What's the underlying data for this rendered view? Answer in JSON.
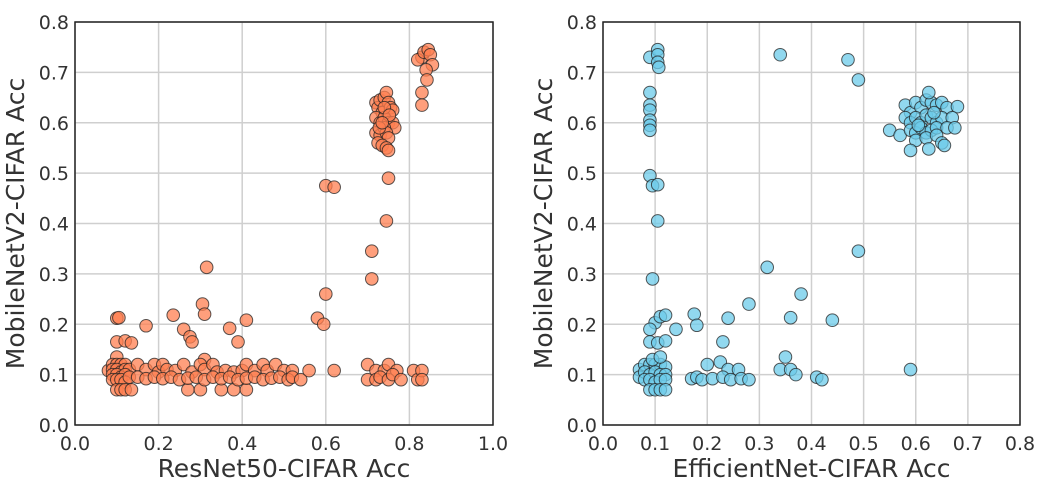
{
  "chart_data": [
    {
      "type": "scatter",
      "title": "",
      "xlabel": "ResNet50-CIFAR Acc",
      "ylabel": "MobileNetV2-CIFAR Acc",
      "xlim": [
        0.0,
        1.0
      ],
      "ylim": [
        0.0,
        0.8
      ],
      "xticks": [
        "0.0",
        "0.2",
        "0.4",
        "0.6",
        "0.8",
        "1.0"
      ],
      "xtick_values": [
        0,
        0.2,
        0.4,
        0.6,
        0.8,
        1.0
      ],
      "yticks": [
        "0.0",
        "0.1",
        "0.2",
        "0.3",
        "0.4",
        "0.5",
        "0.6",
        "0.7",
        "0.8"
      ],
      "ytick_values": [
        0,
        0.1,
        0.2,
        0.3,
        0.4,
        0.5,
        0.6,
        0.7,
        0.8
      ],
      "grid": true,
      "color": "#ff7f50",
      "points": [
        [
          0.83,
          0.73
        ],
        [
          0.82,
          0.725
        ],
        [
          0.835,
          0.74
        ],
        [
          0.845,
          0.745
        ],
        [
          0.85,
          0.735
        ],
        [
          0.855,
          0.715
        ],
        [
          0.84,
          0.705
        ],
        [
          0.842,
          0.685
        ],
        [
          0.83,
          0.66
        ],
        [
          0.83,
          0.635
        ],
        [
          0.72,
          0.64
        ],
        [
          0.725,
          0.63
        ],
        [
          0.73,
          0.645
        ],
        [
          0.735,
          0.62
        ],
        [
          0.74,
          0.65
        ],
        [
          0.745,
          0.66
        ],
        [
          0.75,
          0.64
        ],
        [
          0.755,
          0.63
        ],
        [
          0.76,
          0.625
        ],
        [
          0.72,
          0.61
        ],
        [
          0.73,
          0.6
        ],
        [
          0.74,
          0.61
        ],
        [
          0.75,
          0.6
        ],
        [
          0.76,
          0.6
        ],
        [
          0.765,
          0.59
        ],
        [
          0.72,
          0.58
        ],
        [
          0.73,
          0.575
        ],
        [
          0.74,
          0.59
        ],
        [
          0.745,
          0.58
        ],
        [
          0.75,
          0.57
        ],
        [
          0.725,
          0.56
        ],
        [
          0.735,
          0.555
        ],
        [
          0.745,
          0.55
        ],
        [
          0.75,
          0.545
        ],
        [
          0.74,
          0.63
        ],
        [
          0.728,
          0.59
        ],
        [
          0.752,
          0.615
        ],
        [
          0.735,
          0.6
        ],
        [
          0.75,
          0.49
        ],
        [
          0.745,
          0.405
        ],
        [
          0.71,
          0.345
        ],
        [
          0.71,
          0.29
        ],
        [
          0.6,
          0.475
        ],
        [
          0.62,
          0.472
        ],
        [
          0.6,
          0.26
        ],
        [
          0.58,
          0.212
        ],
        [
          0.595,
          0.2
        ],
        [
          0.1,
          0.212
        ],
        [
          0.105,
          0.213
        ],
        [
          0.1,
          0.165
        ],
        [
          0.12,
          0.167
        ],
        [
          0.135,
          0.163
        ],
        [
          0.17,
          0.197
        ],
        [
          0.235,
          0.218
        ],
        [
          0.26,
          0.19
        ],
        [
          0.275,
          0.175
        ],
        [
          0.28,
          0.165
        ],
        [
          0.305,
          0.24
        ],
        [
          0.31,
          0.22
        ],
        [
          0.315,
          0.313
        ],
        [
          0.31,
          0.13
        ],
        [
          0.37,
          0.192
        ],
        [
          0.41,
          0.208
        ],
        [
          0.39,
          0.165
        ],
        [
          0.1,
          0.135
        ],
        [
          0.08,
          0.108
        ],
        [
          0.09,
          0.12
        ],
        [
          0.1,
          0.12
        ],
        [
          0.11,
          0.12
        ],
        [
          0.12,
          0.12
        ],
        [
          0.09,
          0.11
        ],
        [
          0.1,
          0.11
        ],
        [
          0.11,
          0.105
        ],
        [
          0.12,
          0.11
        ],
        [
          0.13,
          0.11
        ],
        [
          0.09,
          0.1
        ],
        [
          0.1,
          0.1
        ],
        [
          0.11,
          0.095
        ],
        [
          0.12,
          0.1
        ],
        [
          0.09,
          0.09
        ],
        [
          0.1,
          0.09
        ],
        [
          0.11,
          0.09
        ],
        [
          0.12,
          0.085
        ],
        [
          0.13,
          0.095
        ],
        [
          0.1,
          0.07
        ],
        [
          0.11,
          0.07
        ],
        [
          0.12,
          0.07
        ],
        [
          0.135,
          0.07
        ],
        [
          0.27,
          0.07
        ],
        [
          0.3,
          0.07
        ],
        [
          0.35,
          0.07
        ],
        [
          0.38,
          0.07
        ],
        [
          0.41,
          0.07
        ],
        [
          0.15,
          0.12
        ],
        [
          0.17,
          0.11
        ],
        [
          0.19,
          0.12
        ],
        [
          0.2,
          0.105
        ],
        [
          0.21,
          0.12
        ],
        [
          0.22,
          0.11
        ],
        [
          0.24,
          0.108
        ],
        [
          0.26,
          0.12
        ],
        [
          0.28,
          0.105
        ],
        [
          0.3,
          0.12
        ],
        [
          0.31,
          0.11
        ],
        [
          0.33,
          0.12
        ],
        [
          0.34,
          0.105
        ],
        [
          0.36,
          0.108
        ],
        [
          0.38,
          0.105
        ],
        [
          0.4,
          0.108
        ],
        [
          0.41,
          0.12
        ],
        [
          0.43,
          0.108
        ],
        [
          0.45,
          0.12
        ],
        [
          0.46,
          0.108
        ],
        [
          0.48,
          0.12
        ],
        [
          0.5,
          0.108
        ],
        [
          0.52,
          0.108
        ],
        [
          0.15,
          0.095
        ],
        [
          0.17,
          0.092
        ],
        [
          0.19,
          0.095
        ],
        [
          0.21,
          0.092
        ],
        [
          0.23,
          0.095
        ],
        [
          0.25,
          0.09
        ],
        [
          0.27,
          0.093
        ],
        [
          0.29,
          0.095
        ],
        [
          0.31,
          0.09
        ],
        [
          0.33,
          0.095
        ],
        [
          0.35,
          0.092
        ],
        [
          0.37,
          0.095
        ],
        [
          0.39,
          0.09
        ],
        [
          0.41,
          0.093
        ],
        [
          0.43,
          0.095
        ],
        [
          0.45,
          0.09
        ],
        [
          0.47,
          0.093
        ],
        [
          0.49,
          0.095
        ],
        [
          0.51,
          0.09
        ],
        [
          0.52,
          0.095
        ],
        [
          0.54,
          0.09
        ],
        [
          0.56,
          0.108
        ],
        [
          0.62,
          0.108
        ],
        [
          0.7,
          0.12
        ],
        [
          0.72,
          0.108
        ],
        [
          0.74,
          0.108
        ],
        [
          0.75,
          0.12
        ],
        [
          0.77,
          0.108
        ],
        [
          0.7,
          0.09
        ],
        [
          0.72,
          0.09
        ],
        [
          0.73,
          0.095
        ],
        [
          0.75,
          0.09
        ],
        [
          0.76,
          0.1
        ],
        [
          0.78,
          0.09
        ],
        [
          0.81,
          0.108
        ],
        [
          0.82,
          0.09
        ],
        [
          0.83,
          0.108
        ],
        [
          0.83,
          0.09
        ]
      ]
    },
    {
      "type": "scatter",
      "title": "",
      "xlabel": "EfficientNet-CIFAR Acc",
      "ylabel": "MobileNetV2-CIFAR Acc",
      "xlim": [
        0.0,
        0.8
      ],
      "ylim": [
        0.0,
        0.8
      ],
      "xticks": [
        "0.0",
        "0.1",
        "0.2",
        "0.3",
        "0.4",
        "0.5",
        "0.6",
        "0.7",
        "0.8"
      ],
      "xtick_values": [
        0,
        0.1,
        0.2,
        0.3,
        0.4,
        0.5,
        0.6,
        0.7,
        0.8
      ],
      "yticks": [
        "0.0",
        "0.1",
        "0.2",
        "0.3",
        "0.4",
        "0.5",
        "0.6",
        "0.7",
        "0.8"
      ],
      "ytick_values": [
        0,
        0.1,
        0.2,
        0.3,
        0.4,
        0.5,
        0.6,
        0.7,
        0.8
      ],
      "grid": true,
      "color": "#6ccbea",
      "points": [
        [
          0.09,
          0.73
        ],
        [
          0.105,
          0.745
        ],
        [
          0.105,
          0.735
        ],
        [
          0.105,
          0.72
        ],
        [
          0.107,
          0.71
        ],
        [
          0.34,
          0.735
        ],
        [
          0.47,
          0.725
        ],
        [
          0.49,
          0.685
        ],
        [
          0.09,
          0.66
        ],
        [
          0.09,
          0.635
        ],
        [
          0.09,
          0.625
        ],
        [
          0.09,
          0.605
        ],
        [
          0.09,
          0.595
        ],
        [
          0.09,
          0.585
        ],
        [
          0.09,
          0.495
        ],
        [
          0.095,
          0.475
        ],
        [
          0.105,
          0.477
        ],
        [
          0.105,
          0.405
        ],
        [
          0.095,
          0.29
        ],
        [
          0.49,
          0.345
        ],
        [
          0.315,
          0.313
        ],
        [
          0.28,
          0.24
        ],
        [
          0.38,
          0.26
        ],
        [
          0.36,
          0.213
        ],
        [
          0.44,
          0.208
        ],
        [
          0.24,
          0.212
        ],
        [
          0.175,
          0.22
        ],
        [
          0.18,
          0.198
        ],
        [
          0.1,
          0.203
        ],
        [
          0.11,
          0.215
        ],
        [
          0.12,
          0.218
        ],
        [
          0.09,
          0.19
        ],
        [
          0.14,
          0.19
        ],
        [
          0.09,
          0.165
        ],
        [
          0.105,
          0.163
        ],
        [
          0.12,
          0.167
        ],
        [
          0.23,
          0.165
        ],
        [
          0.35,
          0.135
        ],
        [
          0.2,
          0.12
        ],
        [
          0.225,
          0.125
        ],
        [
          0.24,
          0.11
        ],
        [
          0.34,
          0.11
        ],
        [
          0.36,
          0.11
        ],
        [
          0.37,
          0.1
        ],
        [
          0.41,
          0.095
        ],
        [
          0.42,
          0.09
        ],
        [
          0.59,
          0.11
        ],
        [
          0.17,
          0.092
        ],
        [
          0.18,
          0.095
        ],
        [
          0.19,
          0.09
        ],
        [
          0.21,
          0.092
        ],
        [
          0.23,
          0.095
        ],
        [
          0.245,
          0.09
        ],
        [
          0.26,
          0.11
        ],
        [
          0.265,
          0.092
        ],
        [
          0.28,
          0.09
        ],
        [
          0.07,
          0.11
        ],
        [
          0.07,
          0.095
        ],
        [
          0.08,
          0.12
        ],
        [
          0.09,
          0.12
        ],
        [
          0.1,
          0.12
        ],
        [
          0.11,
          0.12
        ],
        [
          0.12,
          0.115
        ],
        [
          0.08,
          0.105
        ],
        [
          0.09,
          0.1
        ],
        [
          0.1,
          0.105
        ],
        [
          0.11,
          0.1
        ],
        [
          0.12,
          0.1
        ],
        [
          0.08,
          0.09
        ],
        [
          0.09,
          0.09
        ],
        [
          0.1,
          0.085
        ],
        [
          0.11,
          0.09
        ],
        [
          0.12,
          0.09
        ],
        [
          0.09,
          0.07
        ],
        [
          0.1,
          0.07
        ],
        [
          0.11,
          0.07
        ],
        [
          0.12,
          0.07
        ],
        [
          0.095,
          0.13
        ],
        [
          0.11,
          0.135
        ],
        [
          0.55,
          0.585
        ],
        [
          0.57,
          0.575
        ],
        [
          0.58,
          0.635
        ],
        [
          0.59,
          0.62
        ],
        [
          0.6,
          0.64
        ],
        [
          0.61,
          0.63
        ],
        [
          0.62,
          0.645
        ],
        [
          0.63,
          0.64
        ],
        [
          0.64,
          0.635
        ],
        [
          0.65,
          0.64
        ],
        [
          0.66,
          0.63
        ],
        [
          0.68,
          0.632
        ],
        [
          0.58,
          0.61
        ],
        [
          0.59,
          0.6
        ],
        [
          0.6,
          0.61
        ],
        [
          0.61,
          0.6
        ],
        [
          0.62,
          0.615
        ],
        [
          0.63,
          0.61
        ],
        [
          0.64,
          0.6
        ],
        [
          0.65,
          0.61
        ],
        [
          0.67,
          0.61
        ],
        [
          0.59,
          0.585
        ],
        [
          0.6,
          0.58
        ],
        [
          0.61,
          0.59
        ],
        [
          0.62,
          0.58
        ],
        [
          0.63,
          0.585
        ],
        [
          0.64,
          0.59
        ],
        [
          0.66,
          0.59
        ],
        [
          0.675,
          0.59
        ],
        [
          0.6,
          0.565
        ],
        [
          0.62,
          0.57
        ],
        [
          0.64,
          0.575
        ],
        [
          0.65,
          0.56
        ],
        [
          0.655,
          0.555
        ],
        [
          0.59,
          0.545
        ],
        [
          0.625,
          0.548
        ],
        [
          0.625,
          0.66
        ],
        [
          0.605,
          0.595
        ],
        [
          0.635,
          0.62
        ]
      ]
    }
  ]
}
